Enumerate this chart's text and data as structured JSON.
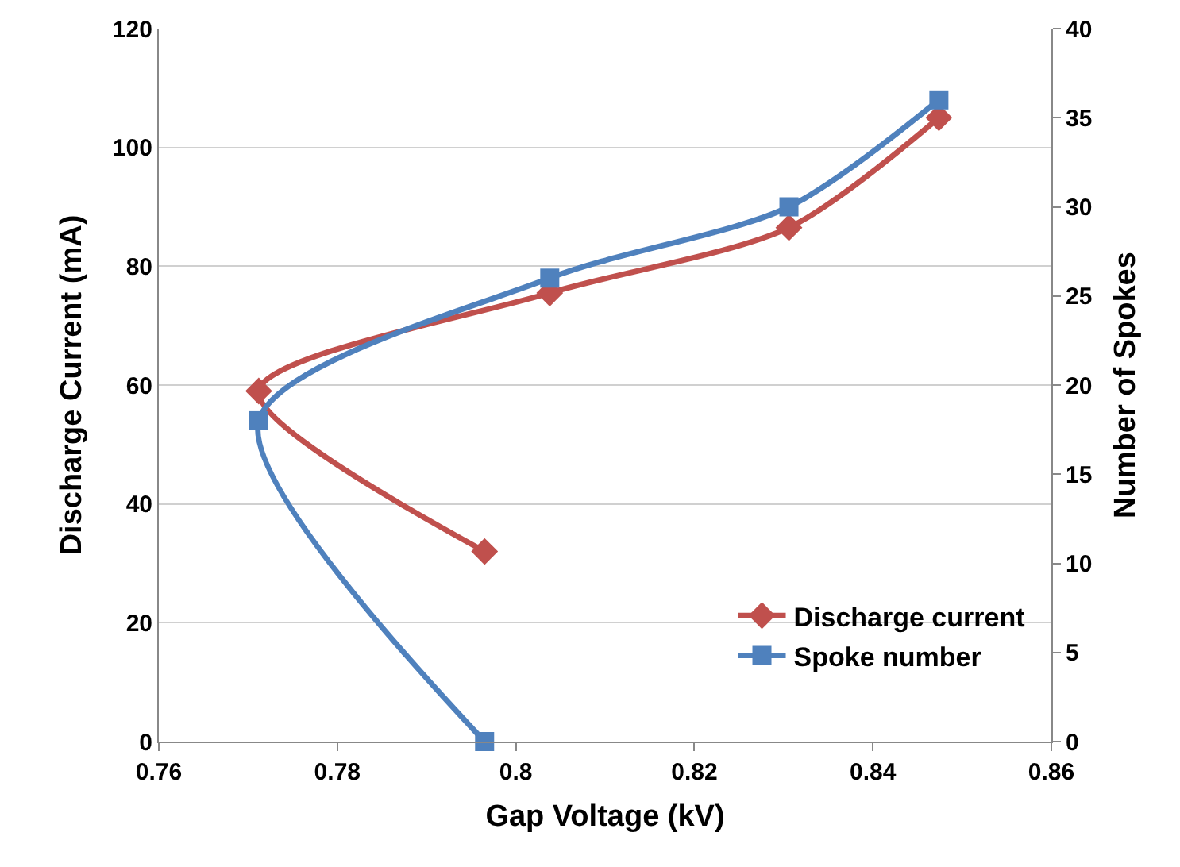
{
  "chart_data": {
    "type": "line",
    "xlabel": "Gap Voltage (kV)",
    "ylabel": "Discharge Current (mA)",
    "y2label": "Number of Spokes",
    "series": [
      {
        "name": "Discharge current",
        "color": "#c0504d",
        "marker": "diamond",
        "x": [
          0.7965,
          0.7712,
          0.8038,
          0.8306,
          0.8474
        ],
        "values": [
          32,
          59,
          75.5,
          86.5,
          105
        ]
      },
      {
        "name": "Spoke number",
        "color": "#4f81bd",
        "marker": "square",
        "axis": "y2",
        "x": [
          0.7965,
          0.7712,
          0.8038,
          0.8306,
          0.8474
        ],
        "values": [
          0,
          18,
          26,
          30,
          36
        ]
      }
    ],
    "xlim": [
      0.76,
      0.86
    ],
    "xticks": [
      0.76,
      0.78,
      {
        "value": 0.8,
        "label": "0.8"
      },
      0.82,
      0.84,
      0.86
    ],
    "ylim": [
      0,
      120
    ],
    "yticks": [
      0,
      20,
      40,
      60,
      80,
      100,
      120
    ],
    "y2lim": [
      0,
      40
    ],
    "y2ticks": [
      0,
      5,
      10,
      15,
      20,
      25,
      30,
      35,
      40
    ],
    "grid": "y",
    "legend": "bottom right"
  }
}
